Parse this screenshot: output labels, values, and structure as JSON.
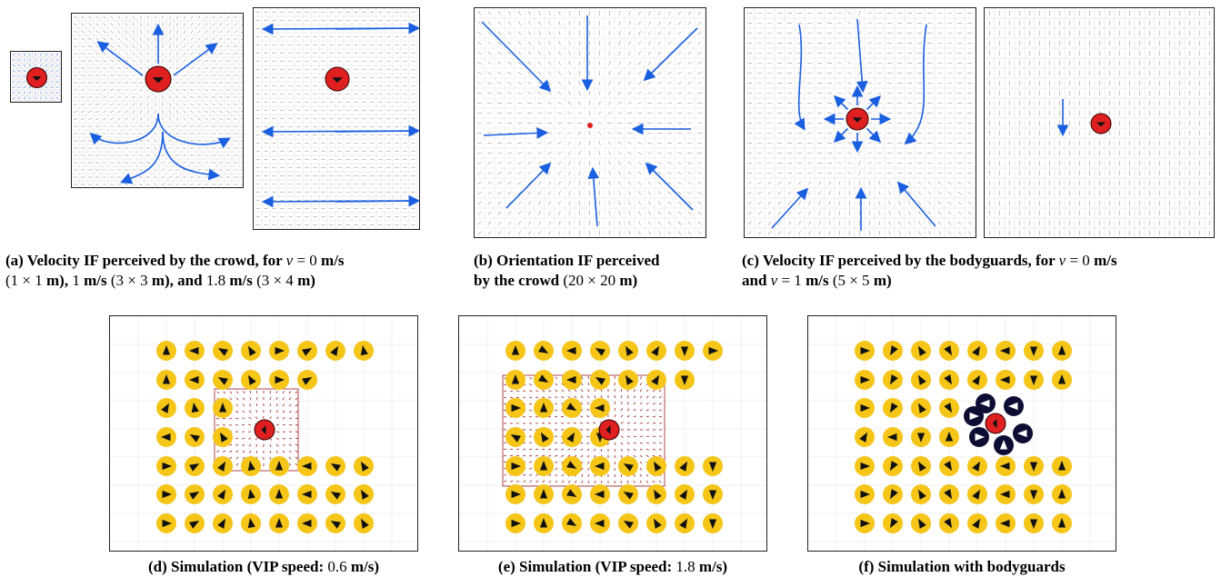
{
  "captions": {
    "a": {
      "label": "(a)",
      "text": "Velocity IF perceived by the crowd, for",
      "v": "v",
      "eq": "= 0",
      "unit": "m/s",
      "line2a": "(1 × 1",
      "line2b": "m),",
      "line2c": "1",
      "line2d": "m/s",
      "line2e": "(3 × 3",
      "line2f": "m), and",
      "line2g": "1.8",
      "line2h": "m/s",
      "line2i": "(3 × 4",
      "line2j": "m)"
    },
    "b": {
      "label": "(b)",
      "line1": "Orientation IF perceived",
      "line2a": "by the crowd",
      "line2b": "(20 × 20",
      "line2c": "m)"
    },
    "c": {
      "label": "(c)",
      "text": "Velocity IF perceived by the bodyguards, for",
      "v": "v",
      "eq": "= 0",
      "unit": "m/s",
      "line2a": "and",
      "line2v": "v",
      "line2b": "= 1",
      "line2c": "m/s",
      "line2d": "(5 × 5",
      "line2e": "m)"
    },
    "d": {
      "label": "(d)",
      "text": "Simulation (VIP speed:",
      "val": "0.6",
      "unit": "m/s)"
    },
    "e": {
      "label": "(e)",
      "text": "Simulation (VIP speed:",
      "val": "1.8",
      "unit": "m/s)"
    },
    "f": {
      "label": "(f)",
      "text": "Simulation with bodyguards"
    }
  },
  "colors": {
    "vip": "#e02020",
    "crowd": "#f5c518",
    "bodyguard": "#0d0d33",
    "arrow": "#1a5fe0",
    "field": "#9a9a9a",
    "influence": "#9b1b1b"
  }
}
